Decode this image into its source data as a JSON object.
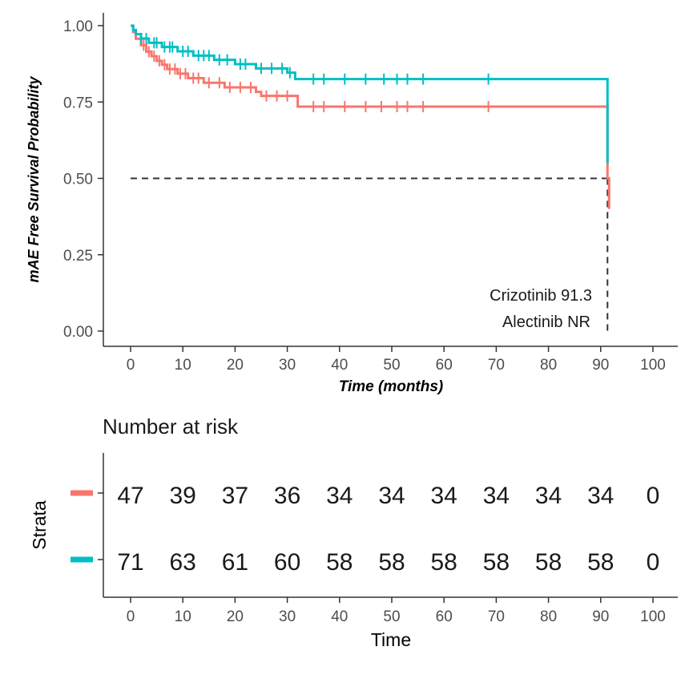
{
  "chart_data": [
    {
      "type": "line",
      "subtype": "kaplan-meier",
      "title": "",
      "xlabel": "Time (months)",
      "ylabel": "mAE Free Survival Probability",
      "xlim": [
        0,
        100
      ],
      "ylim": [
        0,
        1
      ],
      "x_ticks": [
        "0",
        "10",
        "20",
        "30",
        "40",
        "50",
        "60",
        "70",
        "80",
        "90",
        "100"
      ],
      "y_ticks": [
        "0.00",
        "0.25",
        "0.50",
        "0.75",
        "1.00"
      ],
      "median_line": {
        "y": 0.5,
        "x_end": 91.3,
        "style": "dashed"
      },
      "annotations": [
        "Crizotinib 91.3",
        "Alectinib NR"
      ],
      "series": [
        {
          "name": "Crizotinib",
          "color": "#F8766D",
          "steps": [
            [
              0,
              1.0
            ],
            [
              0.5,
              0.979
            ],
            [
              1,
              0.957
            ],
            [
              2,
              0.936
            ],
            [
              3,
              0.915
            ],
            [
              4,
              0.9
            ],
            [
              5,
              0.885
            ],
            [
              6,
              0.872
            ],
            [
              7,
              0.858
            ],
            [
              9,
              0.843
            ],
            [
              11,
              0.828
            ],
            [
              14,
              0.813
            ],
            [
              18,
              0.798
            ],
            [
              24,
              0.783
            ],
            [
              25,
              0.77
            ],
            [
              32,
              0.735
            ],
            [
              91.3,
              0.5
            ],
            [
              91.6,
              0.4
            ]
          ],
          "censor_times": [
            2.5,
            3.5,
            4.5,
            5.5,
            6.5,
            7.5,
            8.5,
            9.5,
            10.5,
            12,
            13,
            15,
            17,
            19,
            21,
            23,
            26,
            28,
            30,
            35,
            37,
            41,
            45,
            48,
            51,
            53,
            56,
            68.5
          ],
          "x_end": 91.6
        },
        {
          "name": "Alectinib",
          "color": "#00BFC4",
          "steps": [
            [
              0,
              1.0
            ],
            [
              0.5,
              0.986
            ],
            [
              1,
              0.972
            ],
            [
              2,
              0.958
            ],
            [
              3.5,
              0.944
            ],
            [
              6,
              0.93
            ],
            [
              9,
              0.916
            ],
            [
              12,
              0.902
            ],
            [
              16,
              0.888
            ],
            [
              20,
              0.874
            ],
            [
              24,
              0.86
            ],
            [
              30,
              0.846
            ],
            [
              31.5,
              0.825
            ],
            [
              91.3,
              0.55
            ]
          ],
          "censor_times": [
            2,
            3,
            4.5,
            5,
            6.5,
            7.5,
            8,
            10,
            11,
            13,
            14,
            15,
            17,
            18.5,
            21,
            22,
            25,
            27,
            29,
            30.5,
            35,
            37,
            41,
            45,
            48.5,
            51,
            53,
            56,
            68.5
          ],
          "x_end": 91.3
        }
      ]
    },
    {
      "type": "table",
      "title": "Number at risk",
      "xlabel": "Time",
      "ylabel": "Strata",
      "x_ticks": [
        "0",
        "10",
        "20",
        "30",
        "40",
        "50",
        "60",
        "70",
        "80",
        "90",
        "100"
      ],
      "rows": [
        {
          "name": "Crizotinib",
          "color": "#F8766D",
          "values": [
            "47",
            "39",
            "37",
            "36",
            "34",
            "34",
            "34",
            "34",
            "34",
            "34",
            "0"
          ]
        },
        {
          "name": "Alectinib",
          "color": "#00BFC4",
          "values": [
            "71",
            "63",
            "61",
            "60",
            "58",
            "58",
            "58",
            "58",
            "58",
            "58",
            "0"
          ]
        }
      ]
    }
  ]
}
